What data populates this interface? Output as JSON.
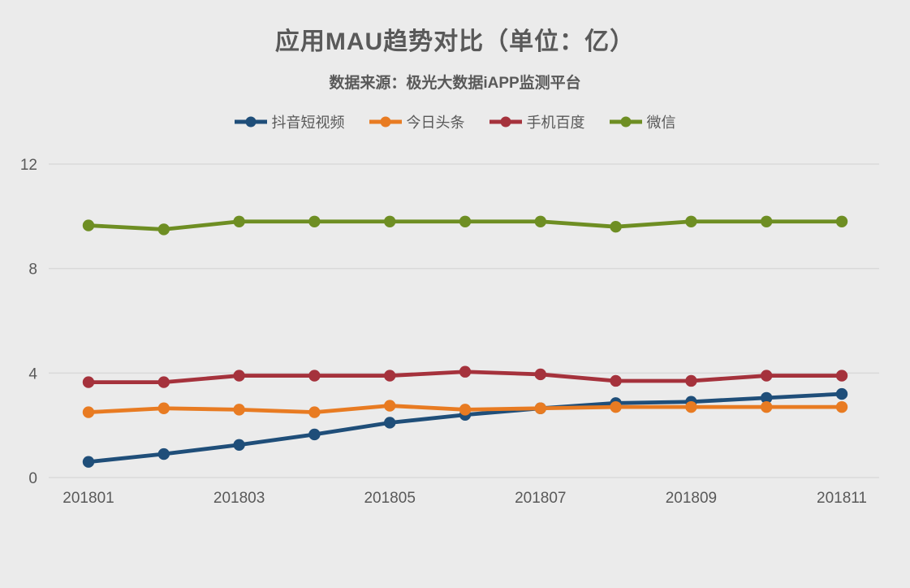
{
  "title": "应用MAU趋势对比（单位：亿）",
  "subtitle": "数据来源：极光大数据iAPP监测平台",
  "colors": {
    "background": "#ebebeb",
    "text": "#595959",
    "gridline": "#d9d9d9",
    "series_blue": "#1f4e79",
    "series_orange": "#e87b22",
    "series_red": "#a5323c",
    "series_green": "#6e8e23"
  },
  "chart_data": {
    "type": "line",
    "title": "应用MAU趋势对比（单位：亿）",
    "subtitle": "数据来源：极光大数据iAPP监测平台",
    "x": [
      "201801",
      "201802",
      "201803",
      "201804",
      "201805",
      "201806",
      "201807",
      "201808",
      "201809",
      "201810",
      "201811"
    ],
    "x_tick_labels_shown": [
      "201801",
      "201803",
      "201805",
      "201807",
      "201809",
      "201811"
    ],
    "xlabel": "",
    "ylabel": "",
    "ylim": [
      0,
      12
    ],
    "yticks": [
      0,
      4,
      8,
      12
    ],
    "grid": true,
    "legend_position": "top",
    "series": [
      {
        "name": "抖音短视频",
        "color": "#1f4e79",
        "values": [
          0.6,
          0.9,
          1.25,
          1.65,
          2.1,
          2.4,
          2.65,
          2.85,
          2.9,
          3.05,
          3.2
        ]
      },
      {
        "name": "今日头条",
        "color": "#e87b22",
        "values": [
          2.5,
          2.65,
          2.6,
          2.5,
          2.75,
          2.6,
          2.65,
          2.7,
          2.7,
          2.7,
          2.7
        ]
      },
      {
        "name": "手机百度",
        "color": "#a5323c",
        "values": [
          3.65,
          3.65,
          3.9,
          3.9,
          3.9,
          4.05,
          3.95,
          3.7,
          3.7,
          3.9,
          3.9
        ]
      },
      {
        "name": "微信",
        "color": "#6e8e23",
        "values": [
          9.65,
          9.5,
          9.8,
          9.8,
          9.8,
          9.8,
          9.8,
          9.6,
          9.8,
          9.8,
          9.8
        ]
      }
    ]
  }
}
